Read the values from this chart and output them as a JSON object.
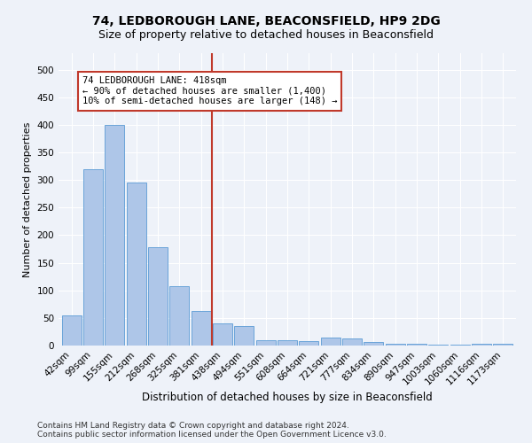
{
  "title": "74, LEDBOROUGH LANE, BEACONSFIELD, HP9 2DG",
  "subtitle": "Size of property relative to detached houses in Beaconsfield",
  "xlabel": "Distribution of detached houses by size in Beaconsfield",
  "ylabel": "Number of detached properties",
  "categories": [
    "42sqm",
    "99sqm",
    "155sqm",
    "212sqm",
    "268sqm",
    "325sqm",
    "381sqm",
    "438sqm",
    "494sqm",
    "551sqm",
    "608sqm",
    "664sqm",
    "721sqm",
    "777sqm",
    "834sqm",
    "890sqm",
    "947sqm",
    "1003sqm",
    "1060sqm",
    "1116sqm",
    "1173sqm"
  ],
  "values": [
    55,
    320,
    400,
    295,
    178,
    107,
    63,
    40,
    35,
    10,
    10,
    8,
    15,
    13,
    7,
    4,
    3,
    2,
    1,
    4,
    4
  ],
  "bar_color": "#aec6e8",
  "bar_edge_color": "#5b9bd5",
  "vline_index": 6.5,
  "vline_color": "#c0392b",
  "annotation_text": "74 LEDBOROUGH LANE: 418sqm\n← 90% of detached houses are smaller (1,400)\n10% of semi-detached houses are larger (148) →",
  "annotation_box_color": "#ffffff",
  "annotation_box_edge_color": "#c0392b",
  "ylim": [
    0,
    530
  ],
  "yticks": [
    0,
    50,
    100,
    150,
    200,
    250,
    300,
    350,
    400,
    450,
    500
  ],
  "footer": "Contains HM Land Registry data © Crown copyright and database right 2024.\nContains public sector information licensed under the Open Government Licence v3.0.",
  "background_color": "#eef2f9",
  "grid_color": "#ffffff",
  "title_fontsize": 10,
  "subtitle_fontsize": 9,
  "xlabel_fontsize": 8.5,
  "ylabel_fontsize": 8,
  "tick_fontsize": 7.5,
  "annotation_fontsize": 7.5,
  "footer_fontsize": 6.5
}
